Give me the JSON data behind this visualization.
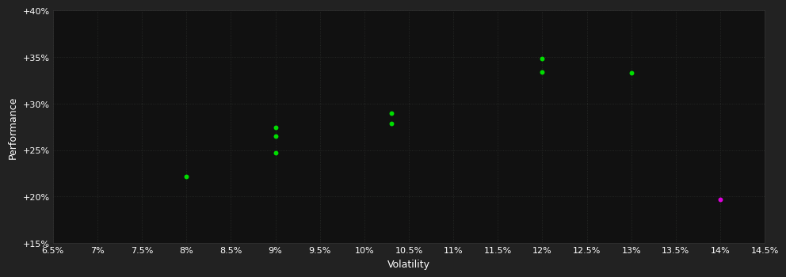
{
  "background_color": "#222222",
  "plot_bg_color": "#111111",
  "xlabel": "Volatility",
  "ylabel": "Performance",
  "xlim": [
    0.065,
    0.145
  ],
  "ylim": [
    0.15,
    0.4
  ],
  "ytick_labels": [
    "+15%",
    "+20%",
    "+25%",
    "+30%",
    "+35%",
    "+40%"
  ],
  "ytick_values": [
    0.15,
    0.2,
    0.25,
    0.3,
    0.35,
    0.4
  ],
  "xtick_labels": [
    "6.5%",
    "7%",
    "7.5%",
    "8%",
    "8.5%",
    "9%",
    "9.5%",
    "10%",
    "10.5%",
    "11%",
    "11.5%",
    "12%",
    "12.5%",
    "13%",
    "13.5%",
    "14%",
    "14.5%"
  ],
  "xtick_values": [
    0.065,
    0.07,
    0.075,
    0.08,
    0.085,
    0.09,
    0.095,
    0.1,
    0.105,
    0.11,
    0.115,
    0.12,
    0.125,
    0.13,
    0.135,
    0.14,
    0.145
  ],
  "green_points": [
    [
      0.08,
      0.222
    ],
    [
      0.09,
      0.274
    ],
    [
      0.09,
      0.265
    ],
    [
      0.09,
      0.247
    ],
    [
      0.103,
      0.29
    ],
    [
      0.103,
      0.279
    ],
    [
      0.12,
      0.348
    ],
    [
      0.12,
      0.334
    ],
    [
      0.13,
      0.333
    ]
  ],
  "magenta_points": [
    [
      0.14,
      0.197
    ]
  ],
  "point_size": 18,
  "green_color": "#00dd00",
  "magenta_color": "#dd00dd",
  "tick_color": "#ffffff",
  "label_color": "#ffffff",
  "label_fontsize": 9,
  "tick_fontsize": 8,
  "grid_color": "#2a2d2a",
  "spine_color": "#333333"
}
